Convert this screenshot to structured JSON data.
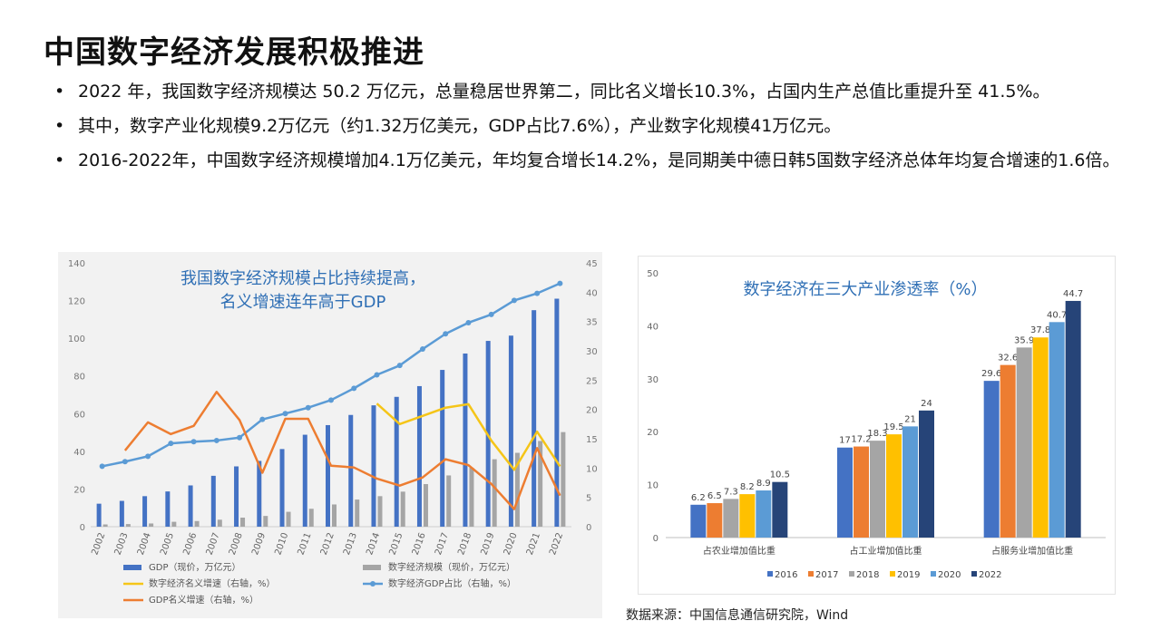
{
  "title": "中国数字经济发展积极推进",
  "bullets": [
    "2022 年，我国数字经济规模达 50.2 万亿元，总量稳居世界第二，同比名义增长10.3%，占国内生产总值比重提升至 41.5%。",
    "其中，数字产业化规模9.2万亿元（约1.32万亿美元，GDP占比7.6%），产业数字化规模41万亿元。",
    "2016-2022年，中国数字经济规模增加4.1万亿美元，年均复合增长14.2%，是同期美中德日韩5国数字经济总体年均复合增速的1.6倍。"
  ],
  "source": "数据来源：中国信息通信研究院，Wind",
  "chart_data": [
    {
      "type": "bar",
      "title": "我国数字经济规模占比持续提高，名义增速连年高于GDP",
      "title_lines": [
        "我国数字经济规模占比持续提高，",
        "名义增速连年高于GDP"
      ],
      "categories": [
        "2002",
        "2003",
        "2004",
        "2005",
        "2006",
        "2007",
        "2008",
        "2009",
        "2010",
        "2011",
        "2012",
        "2013",
        "2014",
        "2015",
        "2016",
        "2017",
        "2018",
        "2019",
        "2020",
        "2021",
        "2022"
      ],
      "y_left": {
        "lim": [
          0,
          140
        ],
        "ticks": [
          0,
          20,
          40,
          60,
          80,
          100,
          120,
          140
        ]
      },
      "y_right": {
        "lim": [
          0,
          45
        ],
        "ticks": [
          0,
          5,
          10,
          15,
          20,
          25,
          30,
          35,
          40,
          45
        ]
      },
      "grid": false,
      "legend_position": "bottom",
      "series": [
        {
          "name": "GDP（现价，万亿元）",
          "kind": "bar",
          "axis": "left",
          "color": "#4472c4",
          "values": [
            12.2,
            13.7,
            16.2,
            18.7,
            21.9,
            27.0,
            32.0,
            34.9,
            41.2,
            48.8,
            53.9,
            59.3,
            64.4,
            68.9,
            74.6,
            83.2,
            91.9,
            98.6,
            101.4,
            114.9,
            121.0
          ]
        },
        {
          "name": "数字经济规模（现价，万亿元）",
          "kind": "bar",
          "axis": "left",
          "color": "#a5a5a5",
          "values": [
            1.2,
            1.4,
            1.7,
            2.6,
            3.0,
            3.7,
            4.8,
            5.7,
            7.9,
            9.5,
            11.8,
            14.4,
            16.2,
            18.6,
            22.6,
            27.2,
            31.3,
            35.8,
            39.2,
            45.5,
            50.2
          ]
        },
        {
          "name": "数字经济名义增速（右轴，%）",
          "kind": "line",
          "axis": "right",
          "color": "#f5c518",
          "values": [
            null,
            null,
            null,
            null,
            null,
            null,
            null,
            null,
            null,
            null,
            null,
            null,
            21.0,
            17.5,
            18.9,
            20.3,
            20.9,
            14.7,
            9.7,
            16.2,
            10.3
          ]
        },
        {
          "name": "数字经济GDP占比（右轴，%）",
          "kind": "line",
          "marker": "circle",
          "axis": "right",
          "color": "#5b9bd5",
          "values": [
            10.3,
            11.1,
            12.0,
            14.2,
            14.5,
            14.7,
            15.2,
            18.3,
            19.3,
            20.3,
            21.6,
            23.6,
            25.9,
            27.5,
            30.3,
            32.9,
            34.8,
            36.2,
            38.6,
            39.8,
            41.5
          ]
        },
        {
          "name": "GDP名义增速（右轴，%）",
          "kind": "line",
          "axis": "right",
          "color": "#ed7d31",
          "values": [
            null,
            13.0,
            17.8,
            15.8,
            17.2,
            23.0,
            18.2,
            9.2,
            18.4,
            18.4,
            10.4,
            10.1,
            8.2,
            7.0,
            8.4,
            11.5,
            10.5,
            7.3,
            3.0,
            13.4,
            5.3
          ]
        }
      ]
    },
    {
      "type": "bar",
      "title": "数字经济在三大产业渗透率（%）",
      "categories": [
        "占农业增加值比重",
        "占工业增加值比重",
        "占服务业增加值比重"
      ],
      "ylim": [
        0,
        50
      ],
      "yticks": [
        0,
        10,
        20,
        30,
        40,
        50
      ],
      "grid": false,
      "legend_position": "bottom",
      "series": [
        {
          "name": "2016",
          "color": "#4472c4",
          "values": [
            6.2,
            17,
            29.6
          ]
        },
        {
          "name": "2017",
          "color": "#ed7d31",
          "values": [
            6.5,
            17.2,
            32.6
          ]
        },
        {
          "name": "2018",
          "color": "#a5a5a5",
          "values": [
            7.3,
            18.3,
            35.9
          ]
        },
        {
          "name": "2019",
          "color": "#ffc000",
          "values": [
            8.2,
            19.5,
            37.8
          ]
        },
        {
          "name": "2020",
          "color": "#5b9bd5",
          "values": [
            8.9,
            21,
            40.7
          ]
        },
        {
          "name": "2022",
          "color": "#264478",
          "values": [
            10.5,
            24,
            44.7
          ]
        }
      ]
    }
  ]
}
